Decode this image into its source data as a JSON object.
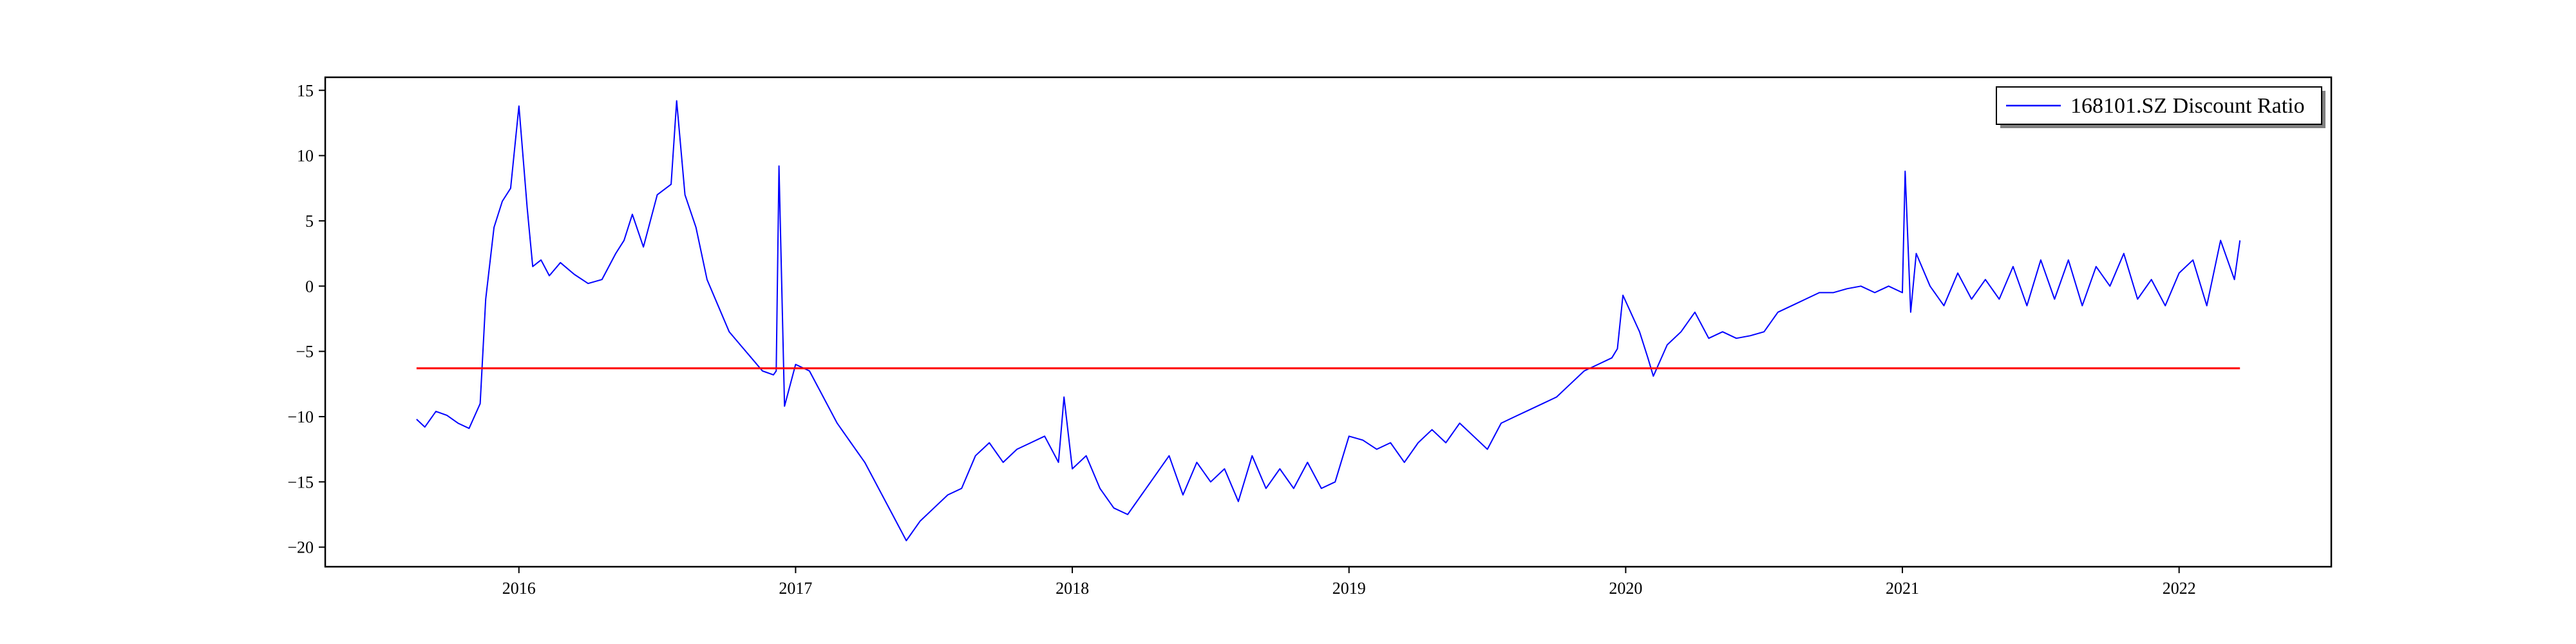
{
  "chart_data": {
    "type": "line",
    "title": "",
    "xlabel": "",
    "ylabel": "",
    "xlim": [
      2015.3,
      2022.55
    ],
    "ylim": [
      -21.5,
      16.0
    ],
    "x_ticks": [
      {
        "value": 2016,
        "label": "2016"
      },
      {
        "value": 2017,
        "label": "2017"
      },
      {
        "value": 2018,
        "label": "2018"
      },
      {
        "value": 2019,
        "label": "2019"
      },
      {
        "value": 2020,
        "label": "2020"
      },
      {
        "value": 2021,
        "label": "2021"
      },
      {
        "value": 2022,
        "label": "2022"
      }
    ],
    "y_ticks": [
      {
        "value": 15,
        "label": "15"
      },
      {
        "value": 10,
        "label": "10"
      },
      {
        "value": 5,
        "label": "5"
      },
      {
        "value": 0,
        "label": "0"
      },
      {
        "value": -5,
        "label": "−5"
      },
      {
        "value": -10,
        "label": "−10"
      },
      {
        "value": -15,
        "label": "−15"
      },
      {
        "value": -20,
        "label": "−20"
      }
    ],
    "grid": false,
    "legend_position": "top-right",
    "series": [
      {
        "name": "168101.SZ Discount Ratio",
        "color": "#0000ff",
        "x": [
          2015.63,
          2015.66,
          2015.7,
          2015.74,
          2015.78,
          2015.82,
          2015.86,
          2015.88,
          2015.91,
          2015.94,
          2015.97,
          2016.0,
          2016.03,
          2016.05,
          2016.08,
          2016.11,
          2016.15,
          2016.2,
          2016.25,
          2016.3,
          2016.35,
          2016.38,
          2016.41,
          2016.45,
          2016.5,
          2016.55,
          2016.57,
          2016.6,
          2016.64,
          2016.68,
          2016.72,
          2016.76,
          2016.8,
          2016.84,
          2016.88,
          2016.92,
          2016.93,
          2016.94,
          2016.96,
          2017.0,
          2017.05,
          2017.1,
          2017.15,
          2017.2,
          2017.25,
          2017.3,
          2017.35,
          2017.4,
          2017.45,
          2017.5,
          2017.55,
          2017.6,
          2017.65,
          2017.7,
          2017.75,
          2017.8,
          2017.85,
          2017.9,
          2017.95,
          2017.97,
          2018.0,
          2018.05,
          2018.1,
          2018.15,
          2018.2,
          2018.25,
          2018.3,
          2018.35,
          2018.4,
          2018.45,
          2018.5,
          2018.55,
          2018.6,
          2018.65,
          2018.7,
          2018.75,
          2018.8,
          2018.85,
          2018.9,
          2018.95,
          2019.0,
          2019.05,
          2019.1,
          2019.15,
          2019.2,
          2019.25,
          2019.3,
          2019.35,
          2019.4,
          2019.45,
          2019.5,
          2019.55,
          2019.6,
          2019.65,
          2019.7,
          2019.75,
          2019.8,
          2019.85,
          2019.9,
          2019.95,
          2019.97,
          2019.99,
          2020.05,
          2020.08,
          2020.1,
          2020.15,
          2020.2,
          2020.25,
          2020.3,
          2020.35,
          2020.4,
          2020.45,
          2020.5,
          2020.55,
          2020.6,
          2020.65,
          2020.7,
          2020.75,
          2020.8,
          2020.85,
          2020.9,
          2020.95,
          2021.0,
          2021.01,
          2021.03,
          2021.05,
          2021.1,
          2021.15,
          2021.2,
          2021.25,
          2021.3,
          2021.35,
          2021.4,
          2021.45,
          2021.5,
          2021.55,
          2021.6,
          2021.65,
          2021.7,
          2021.75,
          2021.8,
          2021.85,
          2021.9,
          2021.95,
          2022.0,
          2022.05,
          2022.1,
          2022.15,
          2022.2,
          2022.22
        ],
        "y": [
          -10.2,
          -10.8,
          -9.6,
          -9.9,
          -10.5,
          -10.9,
          -9.0,
          -1.0,
          4.5,
          6.5,
          7.5,
          13.8,
          6.0,
          1.5,
          2.0,
          0.8,
          1.8,
          0.9,
          0.2,
          0.5,
          2.5,
          3.5,
          5.5,
          3.0,
          7.0,
          7.8,
          14.2,
          7.0,
          4.5,
          0.5,
          -1.5,
          -3.5,
          -4.5,
          -5.5,
          -6.5,
          -6.8,
          -6.5,
          9.2,
          -9.2,
          -6.0,
          -6.5,
          -8.5,
          -10.5,
          -12.0,
          -13.5,
          -15.5,
          -17.5,
          -19.5,
          -18.0,
          -17.0,
          -16.0,
          -15.5,
          -13.0,
          -12.0,
          -13.5,
          -12.5,
          -12.0,
          -11.5,
          -13.5,
          -8.5,
          -14.0,
          -13.0,
          -15.5,
          -17.0,
          -17.5,
          -16.0,
          -14.5,
          -13.0,
          -16.0,
          -13.5,
          -15.0,
          -14.0,
          -16.5,
          -13.0,
          -15.5,
          -14.0,
          -15.5,
          -13.5,
          -15.5,
          -15.0,
          -11.5,
          -11.8,
          -12.5,
          -12.0,
          -13.5,
          -12.0,
          -11.0,
          -12.0,
          -10.5,
          -11.5,
          -12.5,
          -10.5,
          -10.0,
          -9.5,
          -9.0,
          -8.5,
          -7.5,
          -6.5,
          -6.0,
          -5.5,
          -4.8,
          -0.7,
          -3.5,
          -5.5,
          -6.9,
          -4.5,
          -3.5,
          -2.0,
          -4.0,
          -3.5,
          -4.0,
          -3.8,
          -3.5,
          -2.0,
          -1.5,
          -1.0,
          -0.5,
          -0.5,
          -0.2,
          0.0,
          -0.5,
          0.0,
          -0.5,
          8.8,
          -2.0,
          2.5,
          0.0,
          -1.5,
          1.0,
          -1.0,
          0.5,
          -1.0,
          1.5,
          -1.5,
          2.0,
          -1.0,
          2.0,
          -1.5,
          1.5,
          0.0,
          2.5,
          -1.0,
          0.5,
          -1.5,
          1.0,
          2.0,
          -1.5,
          3.5,
          0.5,
          3.5
        ]
      },
      {
        "name": "",
        "color": "#ff0000",
        "x": [
          2015.63,
          2022.22
        ],
        "y": [
          -6.3,
          -6.3
        ]
      }
    ]
  }
}
